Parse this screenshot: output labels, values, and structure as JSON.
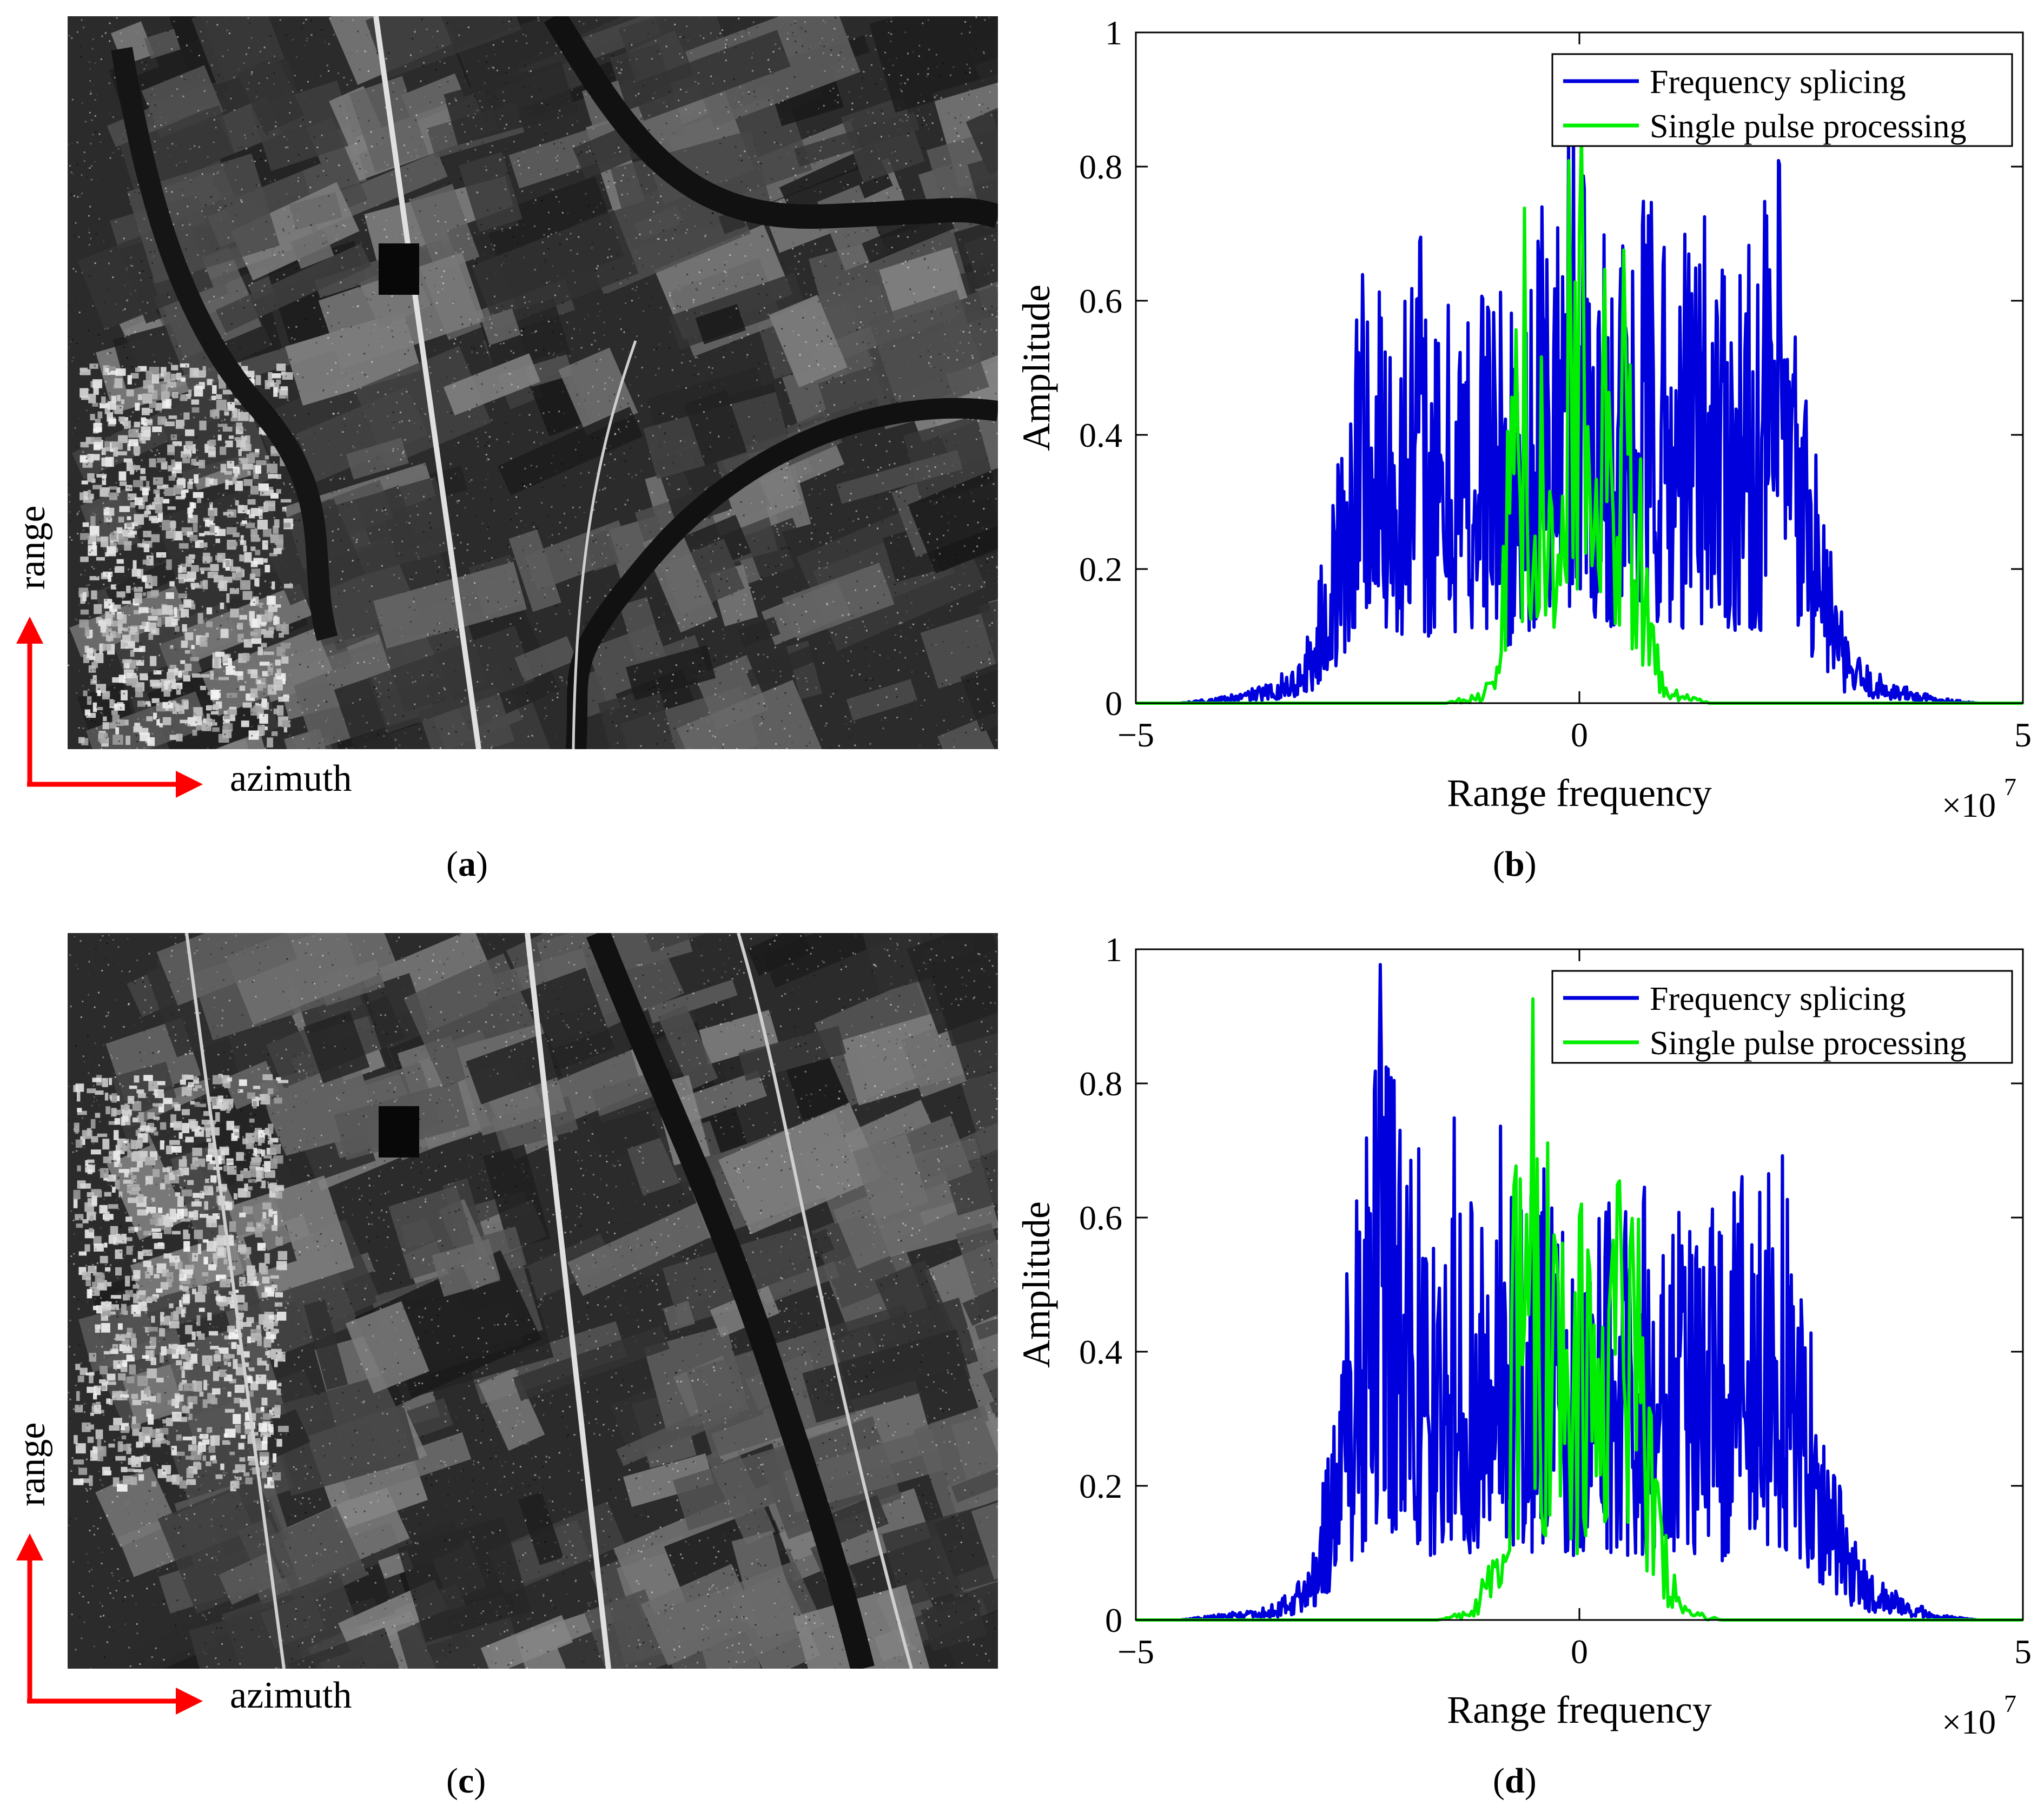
{
  "panels": {
    "a": {
      "caption_open": "(",
      "caption_letter": "a",
      "caption_close": ")",
      "range_label": "range",
      "azimuth_label": "azimuth"
    },
    "b": {
      "caption_open": "(",
      "caption_letter": "b",
      "caption_close": ")"
    },
    "c": {
      "caption_open": "(",
      "caption_letter": "c",
      "caption_close": ")",
      "range_label": "range",
      "azimuth_label": "azimuth"
    },
    "d": {
      "caption_open": "(",
      "caption_letter": "d",
      "caption_close": ")"
    }
  },
  "colors": {
    "arrow": "#ff0000",
    "series1": "#0000dd",
    "series2": "#00ee00",
    "sar_base": "#2b2b2b"
  },
  "chart_data": [
    {
      "panel": "b",
      "type": "line",
      "xlabel": "Range frequency",
      "ylabel": "Amplitude",
      "x_multiplier": "×10",
      "x_multiplier_exp": "7",
      "xlim": [
        -5,
        5
      ],
      "ylim": [
        0,
        1
      ],
      "xticks": [
        -5,
        0,
        5
      ],
      "yticks": [
        0,
        0.2,
        0.4,
        0.6,
        0.8,
        1
      ],
      "ytick_labels": [
        "0",
        "0.2",
        "0.4",
        "0.6",
        "0.8",
        "1"
      ],
      "legend_position": "top-right",
      "series": [
        {
          "name": "Frequency splicing",
          "color": "#0000dd",
          "x": [
            -5,
            -4.5,
            -4.0,
            -3.5,
            -3.2,
            -3.0,
            -2.8,
            -2.6,
            -2.5,
            -2.4,
            -2.3,
            -2.2,
            -2.0,
            -1.8,
            -1.6,
            -1.4,
            -1.2,
            -1.0,
            -0.8,
            -0.6,
            -0.4,
            -0.2,
            0.0,
            0.2,
            0.4,
            0.6,
            0.8,
            1.0,
            1.2,
            1.4,
            1.6,
            1.8,
            2.0,
            2.2,
            2.3,
            2.4,
            2.6,
            2.8,
            3.0,
            3.3,
            3.6,
            4.0,
            4.5,
            5
          ],
          "y": [
            0.0,
            0.0,
            0.01,
            0.03,
            0.06,
            0.13,
            0.3,
            0.5,
            0.7,
            0.77,
            0.6,
            0.72,
            0.65,
            0.74,
            0.55,
            0.68,
            0.62,
            0.73,
            0.56,
            0.7,
            0.78,
            0.82,
            1.0,
            0.75,
            0.76,
            0.7,
            0.8,
            0.68,
            0.73,
            0.79,
            0.76,
            0.71,
            0.69,
            0.84,
            0.8,
            0.62,
            0.48,
            0.28,
            0.1,
            0.05,
            0.03,
            0.01,
            0.0,
            0.0
          ]
        },
        {
          "name": "Single pulse processing",
          "color": "#00ee00",
          "x": [
            -5,
            -1.5,
            -1.1,
            -0.9,
            -0.7,
            -0.5,
            -0.3,
            -0.1,
            0.0,
            0.1,
            0.3,
            0.5,
            0.7,
            0.9,
            1.1,
            1.5,
            5
          ],
          "y": [
            0.0,
            0.0,
            0.02,
            0.08,
            0.87,
            0.65,
            0.72,
            0.82,
            1.0,
            0.8,
            0.85,
            0.68,
            0.38,
            0.08,
            0.02,
            0.0,
            0.0
          ]
        }
      ]
    },
    {
      "panel": "d",
      "type": "line",
      "xlabel": "Range frequency",
      "ylabel": "Amplitude",
      "x_multiplier": "×10",
      "x_multiplier_exp": "7",
      "xlim": [
        -5,
        5
      ],
      "ylim": [
        0,
        1
      ],
      "xticks": [
        -5,
        0,
        5
      ],
      "yticks": [
        0,
        0.2,
        0.4,
        0.6,
        0.8,
        1
      ],
      "ytick_labels": [
        "0",
        "0.2",
        "0.4",
        "0.6",
        "0.8",
        "1"
      ],
      "legend_position": "top-right",
      "series": [
        {
          "name": "Frequency splicing",
          "color": "#0000dd",
          "x": [
            -5,
            -4.5,
            -4.0,
            -3.5,
            -3.2,
            -3.0,
            -2.8,
            -2.6,
            -2.4,
            -2.3,
            -2.2,
            -2.0,
            -1.8,
            -1.6,
            -1.4,
            -1.2,
            -1.0,
            -0.8,
            -0.6,
            -0.4,
            -0.2,
            0.0,
            0.2,
            0.4,
            0.6,
            0.8,
            1.0,
            1.2,
            1.4,
            1.6,
            1.8,
            2.0,
            2.2,
            2.4,
            2.6,
            2.8,
            3.0,
            3.3,
            3.6,
            4.0,
            4.5,
            5
          ],
          "y": [
            0.0,
            0.0,
            0.01,
            0.02,
            0.05,
            0.12,
            0.3,
            0.55,
            0.72,
            0.95,
            1.0,
            0.7,
            0.72,
            0.56,
            0.83,
            0.62,
            0.8,
            0.7,
            0.65,
            0.7,
            0.58,
            0.62,
            0.6,
            0.68,
            0.62,
            0.67,
            0.64,
            0.63,
            0.65,
            0.58,
            0.68,
            0.66,
            0.77,
            0.6,
            0.45,
            0.3,
            0.15,
            0.07,
            0.04,
            0.01,
            0.0,
            0.0
          ]
        },
        {
          "name": "Single pulse processing",
          "color": "#00ee00",
          "x": [
            -5,
            -1.6,
            -1.2,
            -1.0,
            -0.8,
            -0.6,
            -0.4,
            -0.2,
            0.0,
            0.2,
            0.4,
            0.6,
            0.8,
            1.0,
            1.2,
            1.6,
            5
          ],
          "y": [
            0.0,
            0.0,
            0.02,
            0.1,
            0.52,
            1.0,
            0.82,
            0.68,
            0.62,
            0.68,
            0.65,
            0.74,
            0.4,
            0.1,
            0.02,
            0.0,
            0.0
          ]
        }
      ]
    }
  ]
}
